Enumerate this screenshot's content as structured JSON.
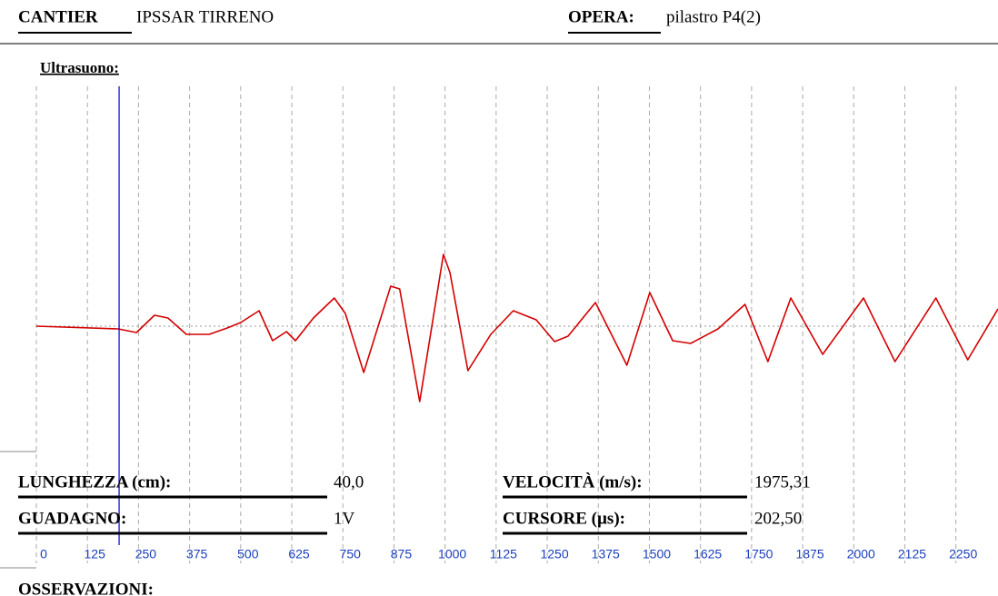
{
  "header": {
    "site_label": "CANTIER",
    "site": "IPSSAR TIRRENO",
    "work_label": "OPERA:",
    "work": "pilastro P4(2)"
  },
  "fields": [
    {
      "label": "LUNGHEZZA (cm):",
      "value": "40,0"
    },
    {
      "label": "VELOCITÀ (m/s):",
      "value": "1975,31"
    },
    {
      "label": "GUADAGNO:",
      "value": "1V"
    },
    {
      "label": "CURSORE (µs):",
      "value": "202,50"
    }
  ],
  "notes_label": "OSSERVAZIONI:",
  "chart_data": {
    "type": "line",
    "title": "Ultrasuono:",
    "x": [
      0,
      200,
      245,
      289,
      322,
      367,
      423,
      467,
      500,
      545,
      578,
      612,
      634,
      678,
      729,
      756,
      801,
      867,
      889,
      938,
      996,
      1012,
      1056,
      1112,
      1167,
      1223,
      1268,
      1301,
      1368,
      1445,
      1501,
      1557,
      1601,
      1668,
      1734,
      1790,
      1846,
      1924,
      2024,
      2101,
      2201,
      2279,
      2353
    ],
    "series": [
      {
        "color": "#d40000",
        "values": [
          0,
          -3,
          -7,
          12,
          9,
          -9,
          -9,
          -2,
          4,
          17,
          -16,
          -6,
          -16,
          9,
          31,
          14,
          -51,
          44,
          41,
          -83,
          79,
          59,
          -49,
          -9,
          17,
          7,
          -17,
          -11,
          26,
          -43,
          37,
          -16,
          -19,
          -3,
          24,
          -39,
          31,
          -31,
          31,
          -39,
          31,
          -37,
          19
        ]
      }
    ],
    "xlim": [
      0,
      2353
    ],
    "xticks": [
      0,
      125,
      250,
      375,
      500,
      625,
      750,
      875,
      1000,
      1125,
      1250,
      1375,
      1500,
      1625,
      1750,
      1875,
      2000,
      2125,
      2250
    ],
    "ylim": [
      -100,
      100
    ],
    "grid": true,
    "cursor": 202.5,
    "cursor_color": "#0000cc"
  }
}
